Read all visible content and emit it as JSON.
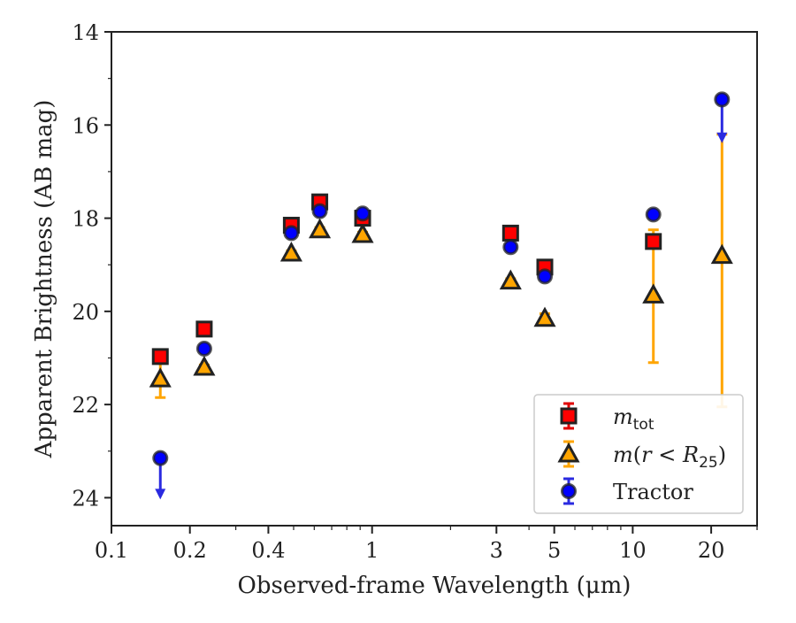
{
  "chart_data": {
    "type": "scatter",
    "xlabel": "Observed-frame Wavelength (μm)",
    "ylabel": "Apparent Brightness (AB mag)",
    "xscale": "log",
    "xlim": [
      0.1,
      30
    ],
    "ylim": [
      24.6,
      14
    ],
    "y_inverted": true,
    "x_ticks": [
      0.1,
      0.2,
      0.4,
      1,
      3,
      5,
      10,
      20
    ],
    "x_tick_labels": [
      "0.1",
      "0.2",
      "0.4",
      "1",
      "3",
      "5",
      "10",
      "20"
    ],
    "y_ticks": [
      14,
      16,
      18,
      20,
      22,
      24
    ],
    "y_tick_labels": [
      "14",
      "16",
      "18",
      "20",
      "22",
      "24"
    ],
    "grid": false,
    "legend_position": "bottom-right",
    "legend_entries": [
      {
        "key": "mtot",
        "label_base": "m",
        "label_sub": "tot"
      },
      {
        "key": "mr",
        "label": "m(r < R25)"
      },
      {
        "key": "tractor",
        "label": "Tractor"
      }
    ],
    "series": [
      {
        "name": "m_tot",
        "marker": "square",
        "color": "#ff0000",
        "errcolor": "#e00000",
        "points": [
          {
            "x": 0.154,
            "y": 20.97,
            "err": 0.05
          },
          {
            "x": 0.227,
            "y": 20.38,
            "err": 0.05
          },
          {
            "x": 0.49,
            "y": 18.15,
            "err": 0.05
          },
          {
            "x": 0.63,
            "y": 17.65,
            "err": 0.05
          },
          {
            "x": 0.92,
            "y": 18.0,
            "err": 0.05
          },
          {
            "x": 3.4,
            "y": 18.32,
            "err": 0.05
          },
          {
            "x": 4.6,
            "y": 19.05,
            "err": 0.1
          },
          {
            "x": 12.0,
            "y": 18.5,
            "err": 0.1
          }
        ]
      },
      {
        "name": "m(r < R25)",
        "marker": "triangle",
        "color": "#ffa500",
        "errcolor": "#ffa500",
        "points": [
          {
            "x": 0.154,
            "y": 21.45,
            "err_low": 0.35,
            "err_high": 0.4
          },
          {
            "x": 0.227,
            "y": 21.2,
            "err_low": 0.05,
            "err_high": 0.05
          },
          {
            "x": 0.49,
            "y": 18.75,
            "err_low": 0.05,
            "err_high": 0.05
          },
          {
            "x": 0.63,
            "y": 18.25,
            "err_low": 0.05,
            "err_high": 0.05
          },
          {
            "x": 0.92,
            "y": 18.35,
            "err_low": 0.05,
            "err_high": 0.05
          },
          {
            "x": 3.4,
            "y": 19.35,
            "err_low": 0.05,
            "err_high": 0.05
          },
          {
            "x": 4.6,
            "y": 20.15,
            "err_low": 0.1,
            "err_high": 0.1
          },
          {
            "x": 12.0,
            "y": 19.65,
            "err_low": 1.4,
            "err_high": 1.45
          },
          {
            "x": 22.0,
            "y": 18.8,
            "err_low": 2.6,
            "err_high": 3.25
          }
        ]
      },
      {
        "name": "Tractor",
        "marker": "circle",
        "color": "#0000ff",
        "errcolor": "#2a2ae0",
        "points": [
          {
            "x": 0.154,
            "y": 23.15,
            "upper_limit": true,
            "arrow_to": 24.0
          },
          {
            "x": 0.227,
            "y": 20.8,
            "err": 0.05
          },
          {
            "x": 0.49,
            "y": 18.32,
            "err": 0.05
          },
          {
            "x": 0.63,
            "y": 17.85,
            "err": 0.05
          },
          {
            "x": 0.92,
            "y": 17.9,
            "err": 0.05
          },
          {
            "x": 3.4,
            "y": 18.62,
            "err": 0.05
          },
          {
            "x": 4.6,
            "y": 19.25,
            "err": 0.05
          },
          {
            "x": 12.0,
            "y": 17.92,
            "err": 0.05
          },
          {
            "x": 22.0,
            "y": 15.45,
            "upper_limit": true,
            "arrow_to": 16.35
          }
        ]
      }
    ]
  }
}
